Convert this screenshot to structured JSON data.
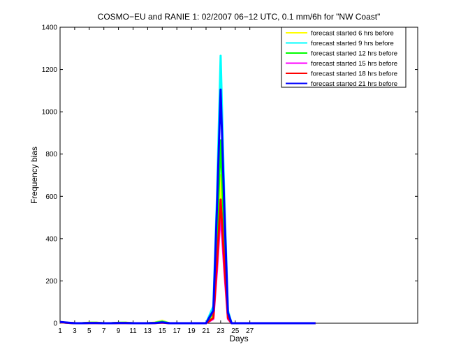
{
  "chart_data": {
    "type": "line",
    "title": "COSMO−EU and RANIE 1: 02/2007 06−12 UTC, 0.1 mm/6h for \"NW Coast\"",
    "xlabel": "Days",
    "ylabel": "Frequency bias",
    "xlim": [
      1,
      50
    ],
    "ylim": [
      0,
      1400
    ],
    "xticks": [
      1,
      3,
      5,
      7,
      9,
      11,
      13,
      15,
      17,
      19,
      21,
      23,
      25,
      27
    ],
    "yticks": [
      0,
      200,
      400,
      600,
      800,
      1000,
      1200,
      1400
    ],
    "grid": false,
    "legend_position": "top-right",
    "series": [
      {
        "name": "forecast started 6 hrs before",
        "color": "#ffff00",
        "x": [
          1,
          2,
          3,
          4,
          5,
          6,
          7,
          8,
          9,
          10,
          11,
          12,
          13,
          14,
          15,
          16,
          17,
          18,
          19,
          20,
          21,
          21.5,
          22,
          22.5,
          23,
          23.5,
          24,
          24.5,
          25,
          26,
          27,
          28,
          29,
          30,
          31,
          32,
          33,
          34,
          35,
          36
        ],
        "y": [
          5,
          2,
          0,
          0,
          3,
          3,
          0,
          0,
          2,
          3,
          0,
          0,
          0,
          3,
          12,
          0,
          0,
          0,
          0,
          0,
          0,
          20,
          40,
          300,
          700,
          300,
          30,
          0,
          0,
          0,
          0,
          0,
          0,
          0,
          0,
          0,
          0,
          0,
          0,
          0
        ]
      },
      {
        "name": "forecast started 9 hrs before",
        "color": "#00ffff",
        "x": [
          1,
          2,
          3,
          4,
          5,
          6,
          7,
          8,
          9,
          10,
          11,
          12,
          13,
          14,
          15,
          16,
          17,
          18,
          19,
          20,
          21,
          21.5,
          22,
          22.5,
          23,
          23.5,
          24,
          24.5,
          25,
          26,
          27,
          28,
          29,
          30,
          31,
          32,
          33,
          34,
          35,
          36
        ],
        "y": [
          5,
          2,
          0,
          0,
          2,
          2,
          0,
          0,
          2,
          2,
          0,
          0,
          0,
          2,
          8,
          0,
          0,
          0,
          0,
          0,
          0,
          40,
          80,
          600,
          1265,
          600,
          60,
          0,
          0,
          0,
          0,
          0,
          0,
          0,
          0,
          0,
          0,
          0,
          0,
          0
        ]
      },
      {
        "name": "forecast started 12 hrs before",
        "color": "#00ff00",
        "x": [
          1,
          2,
          3,
          4,
          5,
          6,
          7,
          8,
          9,
          10,
          11,
          12,
          13,
          14,
          15,
          16,
          17,
          18,
          19,
          20,
          21,
          21.5,
          22,
          22.5,
          23,
          23.5,
          24,
          24.5,
          25,
          26,
          27,
          28,
          29,
          30,
          31,
          32,
          33,
          34,
          35,
          36
        ],
        "y": [
          5,
          2,
          0,
          0,
          2,
          2,
          0,
          0,
          2,
          2,
          0,
          0,
          0,
          2,
          6,
          0,
          0,
          0,
          0,
          0,
          0,
          25,
          50,
          420,
          865,
          420,
          40,
          0,
          0,
          0,
          0,
          0,
          0,
          0,
          0,
          0,
          0,
          0,
          0,
          0
        ]
      },
      {
        "name": "forecast started 15 hrs before",
        "color": "#ff00ff",
        "x": [
          1,
          2,
          3,
          4,
          5,
          6,
          7,
          8,
          9,
          10,
          11,
          12,
          13,
          14,
          15,
          16,
          17,
          18,
          19,
          20,
          21,
          21.5,
          22,
          22.5,
          23,
          23.5,
          24,
          24.5,
          25,
          26,
          27,
          28,
          29,
          30,
          31,
          32,
          33,
          34,
          35,
          36
        ],
        "y": [
          5,
          2,
          0,
          0,
          1,
          1,
          0,
          0,
          1,
          1,
          0,
          0,
          0,
          1,
          3,
          0,
          0,
          0,
          0,
          0,
          0,
          10,
          20,
          250,
          520,
          250,
          20,
          0,
          0,
          0,
          0,
          0,
          0,
          0,
          0,
          0,
          0,
          0,
          0,
          0
        ]
      },
      {
        "name": "forecast started 18 hrs before",
        "color": "#ff0000",
        "x": [
          1,
          2,
          3,
          4,
          5,
          6,
          7,
          8,
          9,
          10,
          11,
          12,
          13,
          14,
          15,
          16,
          17,
          18,
          19,
          20,
          21,
          21.5,
          22,
          22.5,
          23,
          23.5,
          24,
          24.5,
          25,
          26,
          27,
          28,
          29,
          30,
          31,
          32,
          33,
          34,
          35,
          36
        ],
        "y": [
          5,
          2,
          0,
          0,
          1,
          1,
          0,
          0,
          1,
          1,
          0,
          0,
          0,
          1,
          3,
          0,
          0,
          0,
          0,
          0,
          0,
          12,
          25,
          285,
          585,
          285,
          25,
          0,
          0,
          0,
          0,
          0,
          0,
          0,
          0,
          0,
          0,
          0,
          0,
          0
        ]
      },
      {
        "name": "forecast started 21 hrs before",
        "color": "#0000ff",
        "x": [
          1,
          2,
          3,
          4,
          5,
          6,
          7,
          8,
          9,
          10,
          11,
          12,
          13,
          14,
          15,
          16,
          17,
          18,
          19,
          20,
          21,
          21.5,
          22,
          22.5,
          23,
          23.5,
          24,
          24.5,
          25,
          26,
          27,
          28,
          29,
          30,
          31,
          32,
          33,
          34,
          35,
          36
        ],
        "y": [
          6,
          3,
          0,
          0,
          1,
          1,
          0,
          0,
          1,
          1,
          0,
          0,
          0,
          1,
          4,
          0,
          0,
          0,
          0,
          0,
          0,
          30,
          60,
          550,
          1105,
          550,
          50,
          0,
          0,
          0,
          0,
          0,
          0,
          0,
          0,
          0,
          0,
          0,
          0,
          0
        ]
      }
    ]
  }
}
